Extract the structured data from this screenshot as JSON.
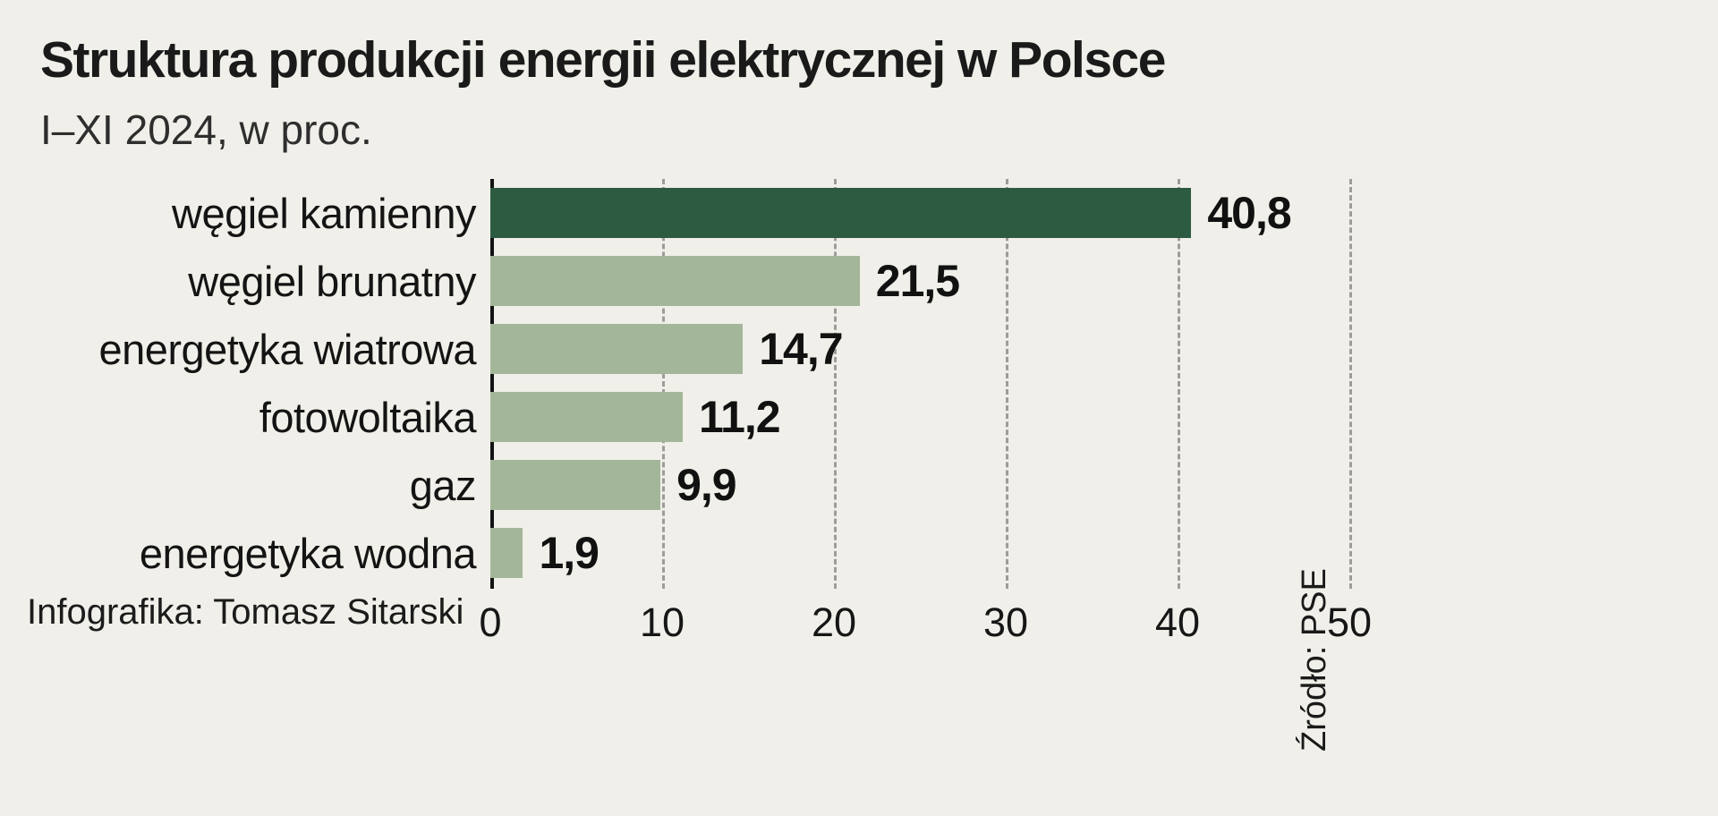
{
  "chart_data": {
    "type": "bar",
    "orientation": "horizontal",
    "title": "Struktura produkcji energii elektrycznej w Polsce",
    "subtitle": "I–XI 2024, w proc.",
    "categories": [
      "węgiel kamienny",
      "węgiel brunatny",
      "energetyka wiatrowa",
      "fotowoltaika",
      "gaz",
      "energetyka wodna"
    ],
    "values": [
      40.8,
      21.5,
      14.7,
      11.2,
      9.9,
      1.9
    ],
    "value_labels": [
      "40,8",
      "21,5",
      "14,7",
      "11,2",
      "9,9",
      "1,9"
    ],
    "xlim": [
      0,
      50
    ],
    "x_ticks": [
      0,
      10,
      20,
      30,
      40,
      50
    ],
    "grid": "vertical-dashed",
    "legend": "none",
    "source": "Źródło: PSE",
    "credit": "Infografika: Tomasz Sitarski",
    "colors": {
      "highlight_bar": "#2d5b41",
      "bar": "#a4b69a",
      "background": "#f0efe9",
      "text": "#161616",
      "gridline": "#9d9d98"
    }
  }
}
